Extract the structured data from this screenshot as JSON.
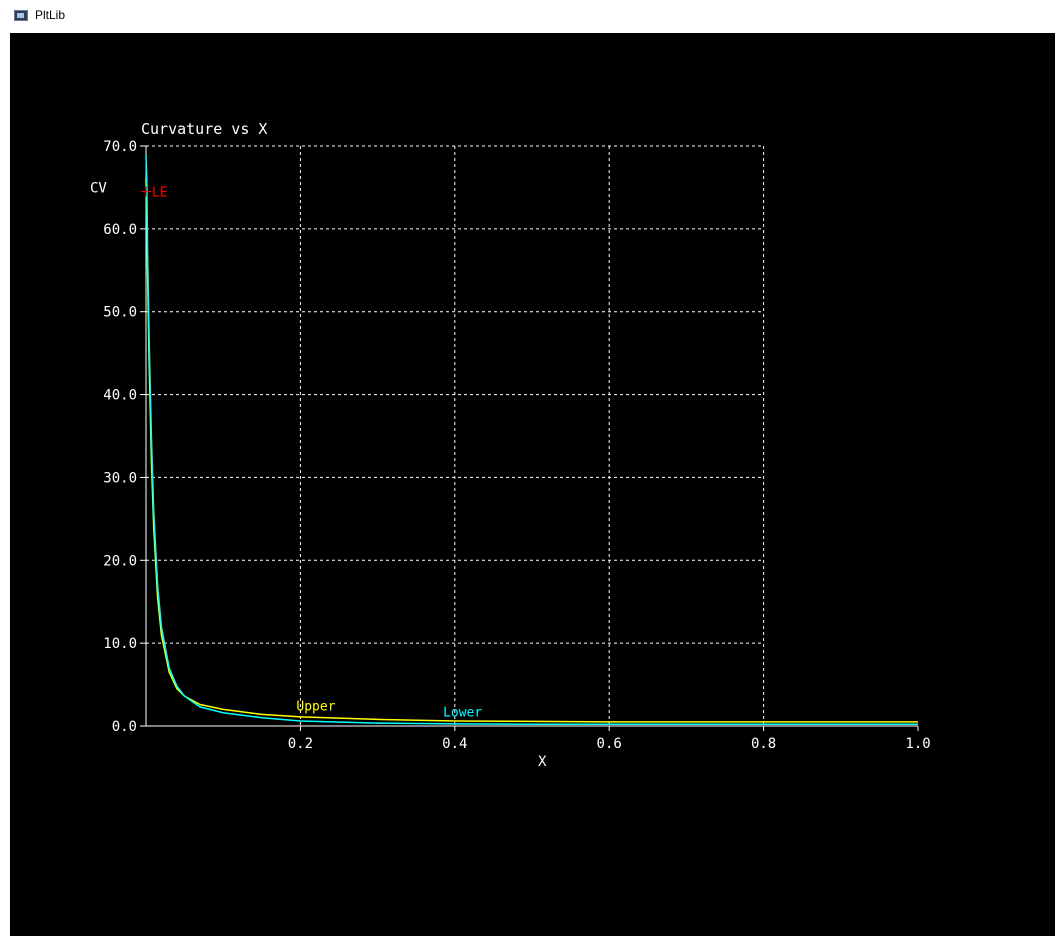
{
  "window": {
    "title": "PltLib"
  },
  "chart_data": {
    "type": "line",
    "title": "Curvature vs X",
    "xlabel": "X",
    "ylabel": "CV",
    "xlim": [
      0.0,
      1.0
    ],
    "ylim": [
      0.0,
      70.0
    ],
    "grid": true,
    "x_grid": [
      0.2,
      0.4,
      0.6,
      0.8
    ],
    "x_ticks": [
      {
        "value": 0.2,
        "label": "0.2"
      },
      {
        "value": 0.4,
        "label": "0.4"
      },
      {
        "value": 0.6,
        "label": "0.6"
      },
      {
        "value": 0.8,
        "label": "0.8"
      },
      {
        "value": 1.0,
        "label": "1.0"
      }
    ],
    "y_ticks": [
      {
        "value": 0.0,
        "label": "0.0"
      },
      {
        "value": 10.0,
        "label": "10.0"
      },
      {
        "value": 20.0,
        "label": "20.0"
      },
      {
        "value": 30.0,
        "label": "30.0"
      },
      {
        "value": 40.0,
        "label": "40.0"
      },
      {
        "value": 50.0,
        "label": "50.0"
      },
      {
        "value": 60.0,
        "label": "60.0"
      },
      {
        "value": 70.0,
        "label": "70.0"
      }
    ],
    "series": [
      {
        "name": "Upper",
        "color": "#ffff00",
        "x": [
          0.0,
          0.001,
          0.002,
          0.004,
          0.007,
          0.01,
          0.015,
          0.02,
          0.03,
          0.04,
          0.05,
          0.07,
          0.1,
          0.15,
          0.2,
          0.3,
          0.4,
          0.5,
          0.6,
          0.7,
          0.8,
          0.9,
          1.0
        ],
        "y": [
          66.0,
          62.0,
          55.0,
          44.0,
          32.0,
          24.0,
          15.5,
          11.0,
          6.5,
          4.5,
          3.6,
          2.6,
          2.0,
          1.4,
          1.1,
          0.8,
          0.6,
          0.55,
          0.5,
          0.5,
          0.5,
          0.5,
          0.5
        ]
      },
      {
        "name": "Lower",
        "color": "#00ffff",
        "x": [
          0.0,
          0.001,
          0.002,
          0.004,
          0.007,
          0.01,
          0.015,
          0.02,
          0.03,
          0.04,
          0.05,
          0.07,
          0.1,
          0.15,
          0.2,
          0.3,
          0.4,
          0.5,
          0.6,
          0.7,
          0.8,
          0.9,
          1.0
        ],
        "y": [
          69.0,
          66.0,
          58.0,
          47.0,
          35.0,
          26.0,
          17.0,
          12.0,
          7.0,
          4.8,
          3.6,
          2.3,
          1.6,
          1.0,
          0.6,
          0.35,
          0.25,
          0.2,
          0.2,
          0.2,
          0.2,
          0.2,
          0.2
        ]
      }
    ],
    "series_labels": [
      {
        "text": "Upper",
        "color": "#ffff00",
        "x": 0.2,
        "y": 1.4
      },
      {
        "text": "Lower",
        "color": "#00ffff",
        "x": 0.39,
        "y": 0.65
      }
    ],
    "annotations": [
      {
        "text": "LE",
        "color": "#ff0000",
        "x": 0.0,
        "y": 64.5
      }
    ],
    "colors": {
      "background": "#000000",
      "axes": "#ffffff",
      "grid": "#ffffff",
      "text": "#ffffff"
    }
  }
}
